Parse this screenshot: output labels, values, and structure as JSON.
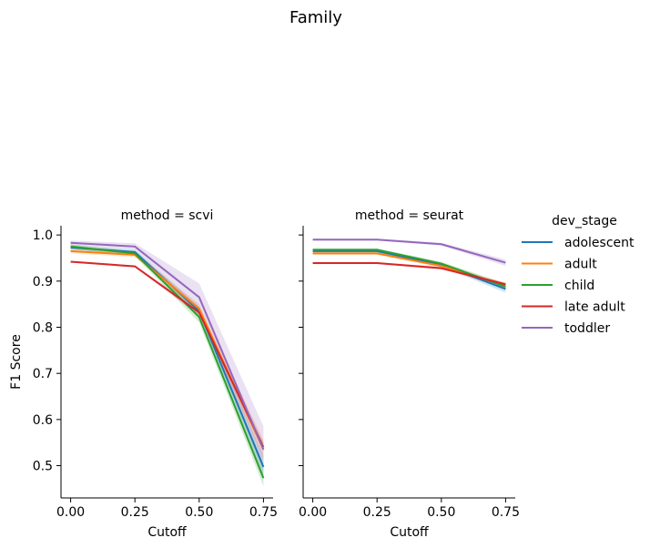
{
  "title": "Family",
  "chart_data": [
    {
      "type": "line",
      "panel_title": "method = scvi",
      "xlabel": "Cutoff",
      "ylabel": "F1 Score",
      "x": [
        0.0,
        0.25,
        0.5,
        0.75
      ],
      "x_ticks": [
        "0.00",
        "0.25",
        "0.50",
        "0.75"
      ],
      "y_ticks": [
        "0.5",
        "0.6",
        "0.7",
        "0.8",
        "0.9",
        "1.0"
      ],
      "xlim": [
        -0.0375,
        0.7875
      ],
      "ylim": [
        0.43,
        1.02
      ],
      "series": [
        {
          "name": "adolescent",
          "color": "#1f77b4",
          "values": [
            0.973,
            0.963,
            0.835,
            0.497
          ],
          "ci_low": [
            0.968,
            0.958,
            0.825,
            0.475
          ],
          "ci_high": [
            0.978,
            0.968,
            0.845,
            0.52
          ]
        },
        {
          "name": "adult",
          "color": "#ff7f0e",
          "values": [
            0.965,
            0.957,
            0.84,
            0.535
          ],
          "ci_low": [
            0.96,
            0.952,
            0.83,
            0.515
          ],
          "ci_high": [
            0.97,
            0.962,
            0.85,
            0.555
          ]
        },
        {
          "name": "child",
          "color": "#2ca02c",
          "values": [
            0.975,
            0.96,
            0.822,
            0.473
          ],
          "ci_low": [
            0.97,
            0.955,
            0.81,
            0.455
          ],
          "ci_high": [
            0.98,
            0.965,
            0.835,
            0.492
          ]
        },
        {
          "name": "late adult",
          "color": "#d62728",
          "values": [
            0.942,
            0.932,
            0.832,
            0.54
          ],
          "ci_low": [
            0.94,
            0.93,
            0.826,
            0.53
          ],
          "ci_high": [
            0.944,
            0.934,
            0.838,
            0.55
          ]
        },
        {
          "name": "toddler",
          "color": "#9467bd",
          "values": [
            0.983,
            0.975,
            0.865,
            0.535
          ],
          "ci_low": [
            0.978,
            0.968,
            0.835,
            0.49
          ],
          "ci_high": [
            0.988,
            0.982,
            0.895,
            0.585
          ]
        }
      ]
    },
    {
      "type": "line",
      "panel_title": "method = seurat",
      "xlabel": "Cutoff",
      "ylabel": "",
      "x": [
        0.0,
        0.25,
        0.5,
        0.75
      ],
      "x_ticks": [
        "0.00",
        "0.25",
        "0.50",
        "0.75"
      ],
      "y_ticks": [],
      "xlim": [
        -0.0375,
        0.7875
      ],
      "ylim": [
        0.43,
        1.02
      ],
      "series": [
        {
          "name": "adolescent",
          "color": "#1f77b4",
          "values": [
            0.965,
            0.965,
            0.935,
            0.883
          ],
          "ci_low": [
            0.962,
            0.962,
            0.931,
            0.875
          ],
          "ci_high": [
            0.968,
            0.968,
            0.939,
            0.891
          ]
        },
        {
          "name": "adult",
          "color": "#ff7f0e",
          "values": [
            0.96,
            0.96,
            0.933,
            0.89
          ],
          "ci_low": [
            0.957,
            0.957,
            0.929,
            0.884
          ],
          "ci_high": [
            0.963,
            0.963,
            0.937,
            0.896
          ]
        },
        {
          "name": "child",
          "color": "#2ca02c",
          "values": [
            0.968,
            0.968,
            0.938,
            0.888
          ],
          "ci_low": [
            0.965,
            0.965,
            0.934,
            0.881
          ],
          "ci_high": [
            0.971,
            0.971,
            0.942,
            0.895
          ]
        },
        {
          "name": "late adult",
          "color": "#d62728",
          "values": [
            0.939,
            0.939,
            0.928,
            0.893
          ],
          "ci_low": [
            0.937,
            0.937,
            0.925,
            0.889
          ],
          "ci_high": [
            0.941,
            0.941,
            0.931,
            0.897
          ]
        },
        {
          "name": "toddler",
          "color": "#9467bd",
          "values": [
            0.99,
            0.99,
            0.98,
            0.94
          ],
          "ci_low": [
            0.988,
            0.988,
            0.977,
            0.933
          ],
          "ci_high": [
            0.992,
            0.992,
            0.983,
            0.947
          ]
        }
      ]
    }
  ],
  "legend": {
    "title": "dev_stage",
    "placement": "right",
    "entries": [
      {
        "label": "adolescent",
        "color": "#1f77b4"
      },
      {
        "label": "adult",
        "color": "#ff7f0e"
      },
      {
        "label": "child",
        "color": "#2ca02c"
      },
      {
        "label": "late adult",
        "color": "#d62728"
      },
      {
        "label": "toddler",
        "color": "#9467bd"
      }
    ]
  }
}
